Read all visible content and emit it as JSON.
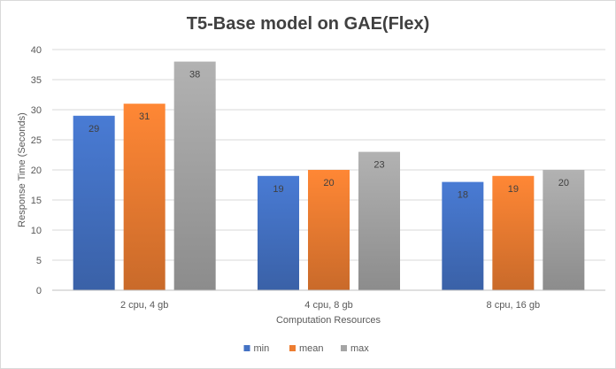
{
  "chart_data": {
    "type": "bar",
    "title": "T5-Base model on GAE(Flex)",
    "xlabel": "Computation Resources",
    "ylabel": "Response Time (Seconds)",
    "ylim": [
      0,
      40
    ],
    "yticks": [
      0,
      5,
      10,
      15,
      20,
      25,
      30,
      35,
      40
    ],
    "grid": true,
    "legend_position": "bottom",
    "categories": [
      "2 cpu, 4 gb",
      "4 cpu, 8 gb",
      "8 cpu, 16 gb"
    ],
    "series": [
      {
        "name": "min",
        "values": [
          29,
          19,
          18
        ],
        "color": "#4472c4"
      },
      {
        "name": "mean",
        "values": [
          31,
          20,
          19
        ],
        "color": "#ed7d31"
      },
      {
        "name": "max",
        "values": [
          38,
          23,
          20
        ],
        "color": "#a5a5a5"
      }
    ]
  }
}
